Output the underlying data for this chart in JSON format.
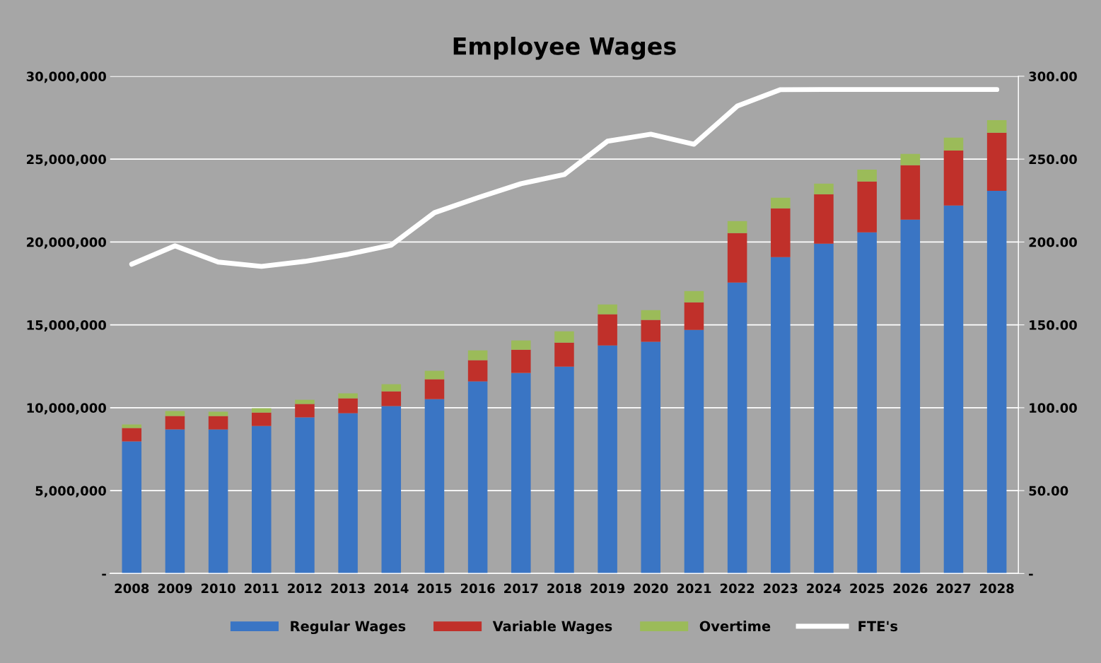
{
  "chart_data": {
    "type": "bar",
    "title": "Employee Wages",
    "stacked": true,
    "categories": [
      "2008",
      "2009",
      "2010",
      "2011",
      "2012",
      "2013",
      "2014",
      "2015",
      "2016",
      "2017",
      "2018",
      "2019",
      "2020",
      "2021",
      "2022",
      "2023",
      "2024",
      "2025",
      "2026",
      "2027",
      "2028"
    ],
    "series": [
      {
        "name": "Regular Wages",
        "color": "#3a75c4",
        "values": [
          7970000,
          8690000,
          8690000,
          8900000,
          9420000,
          9670000,
          10100000,
          10520000,
          11590000,
          12100000,
          12480000,
          13760000,
          13980000,
          14700000,
          17550000,
          19090000,
          19900000,
          20580000,
          21350000,
          22200000,
          23090000
        ]
      },
      {
        "name": "Variable Wages",
        "color": "#c0302a",
        "values": [
          810000,
          810000,
          810000,
          810000,
          810000,
          900000,
          890000,
          1200000,
          1280000,
          1400000,
          1450000,
          1880000,
          1320000,
          1660000,
          2990000,
          2940000,
          2980000,
          3070000,
          3280000,
          3320000,
          3500000
        ]
      },
      {
        "name": "Overtime",
        "color": "#9bbb59",
        "values": [
          210000,
          300000,
          260000,
          260000,
          250000,
          300000,
          430000,
          510000,
          590000,
          560000,
          680000,
          590000,
          590000,
          680000,
          720000,
          640000,
          640000,
          720000,
          680000,
          770000,
          760000
        ]
      },
      {
        "name": "FTE's",
        "type": "line",
        "axis": "y2",
        "color": "#ffffff",
        "values": [
          186.6,
          197.7,
          187.9,
          185.3,
          188.3,
          192.6,
          198.1,
          217.7,
          226.7,
          235.2,
          240.7,
          260.8,
          265,
          259,
          282,
          291.9,
          292,
          292,
          292,
          292,
          292
        ]
      }
    ],
    "ylim": [
      0,
      30000000
    ],
    "yticks": [
      {
        "value": 0,
        "label": "-"
      },
      {
        "value": 5000000,
        "label": "5,000,000"
      },
      {
        "value": 10000000,
        "label": "10,000,000"
      },
      {
        "value": 15000000,
        "label": "15,000,000"
      },
      {
        "value": 20000000,
        "label": "20,000,000"
      },
      {
        "value": 25000000,
        "label": "25,000,000"
      },
      {
        "value": 30000000,
        "label": "30,000,000"
      }
    ],
    "y2lim": [
      0,
      300
    ],
    "y2ticks": [
      {
        "value": 0,
        "label": "-"
      },
      {
        "value": 50,
        "label": "50.00"
      },
      {
        "value": 100,
        "label": "100.00"
      },
      {
        "value": 150,
        "label": "150.00"
      },
      {
        "value": 200,
        "label": "200.00"
      },
      {
        "value": 250,
        "label": "250.00"
      },
      {
        "value": 300,
        "label": "300.00"
      }
    ],
    "grid": "y",
    "legend": "bottom"
  }
}
